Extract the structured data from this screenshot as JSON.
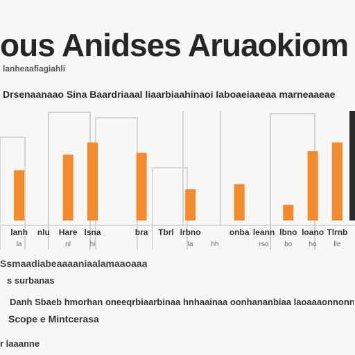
{
  "chart_data": {
    "type": "bar",
    "title": "ous Anidses Aruaokiom",
    "subtitle": "lanheaafiagiahli",
    "legend_text": "Drsenaanaao Sina Baardriaaal liaarbiaahinaoi Iaboaeiaaeaa marneaaeae",
    "categories": [
      "lanh",
      "nlu",
      "Hare",
      "lsna",
      "",
      "bra",
      "Tbrl",
      "lrbno",
      "",
      "onba",
      "leann",
      "lbno",
      "loano",
      "Tlrnb"
    ],
    "sublabels": [
      "la",
      "",
      "nl",
      "hi",
      "",
      "",
      "",
      "la",
      "hh",
      "",
      "rso",
      "bo",
      "ho",
      "lle"
    ],
    "values": [
      29,
      0,
      38,
      45,
      0,
      39,
      0,
      18,
      0,
      21,
      0,
      9,
      40,
      45
    ],
    "series_color": "#f58a2a",
    "ylim": [
      0,
      60
    ],
    "grid": true
  },
  "notes": {
    "line1": "Ssmaadiabeaaaaniaalamaaoaaa",
    "line2": "s surbanas",
    "line3": "Danh Sbaeb hmorhan oneeqrbiaarbinaa hnhaainaa oonhananbiaa laoaaaonnonnnh",
    "line4": "Scope e Mintcerasa",
    "line5": "r Iaaanne"
  }
}
